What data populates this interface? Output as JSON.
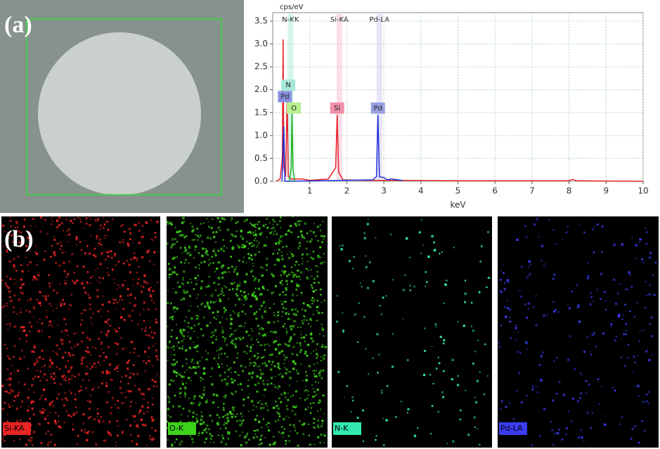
{
  "panels": {
    "a_label": "(a)",
    "b_label": "(b)",
    "maps": [
      {
        "label": "Si-KA",
        "color": "#e82424"
      },
      {
        "label": "O-K",
        "color": "#3ed21a"
      },
      {
        "label": "N-K",
        "color": "#33e8b0"
      },
      {
        "label": "Pd-LA",
        "color": "#3a3cf0"
      }
    ]
  },
  "chart_data": {
    "type": "line",
    "ylabel": "cps/eV",
    "xlabel": "keV",
    "xlim": [
      0,
      10
    ],
    "xticks": [
      1,
      2,
      3,
      4,
      5,
      6,
      7,
      8,
      9,
      10
    ],
    "ylim": [
      0,
      3.5
    ],
    "yticks": [
      {
        "value": 0,
        "label": "0.0"
      },
      {
        "value": 0.5,
        "label": "0.5"
      },
      {
        "value": 1,
        "label": "1.0"
      },
      {
        "value": 1.5,
        "label": "1.5"
      },
      {
        "value": 2,
        "label": "2.0"
      },
      {
        "value": 2.5,
        "label": "2.5"
      },
      {
        "value": 3,
        "label": "3.0"
      },
      {
        "value": 3.5,
        "label": "3.5"
      }
    ],
    "grid": true,
    "series": [
      {
        "color": "#e8202a",
        "x": [
          0.1,
          0.2,
          0.26,
          0.28,
          0.3,
          0.35,
          0.39,
          0.42,
          0.5,
          0.8,
          1.0,
          1.5,
          1.7,
          1.74,
          1.78,
          1.9,
          2.5,
          3.5,
          5,
          6,
          8,
          8.1,
          8.2,
          10
        ],
        "values": [
          0,
          0.05,
          0.5,
          3.1,
          0.3,
          0.1,
          1.9,
          0.1,
          0.05,
          0.05,
          0.02,
          0.05,
          0.3,
          1.45,
          0.2,
          0.03,
          0.02,
          0.02,
          0.01,
          0.01,
          0.01,
          0.04,
          0.01,
          0
        ]
      },
      {
        "color": "#2030d8",
        "x": [
          0.25,
          0.3,
          0.33,
          2.7,
          2.8,
          2.84,
          2.88,
          3.0,
          3.1,
          3.2,
          3.5
        ],
        "values": [
          0,
          1.2,
          0,
          0.03,
          0.1,
          1.45,
          0.1,
          0.08,
          0.03,
          0.05,
          0.02
        ]
      },
      {
        "color": "#20b020",
        "x": [
          0.45,
          0.5,
          0.52,
          0.55,
          0.6
        ],
        "values": [
          0,
          0.3,
          1.5,
          0.25,
          0
        ]
      }
    ],
    "annotations": [
      {
        "text": "N-KK",
        "x": 0.48,
        "color": "#b8f0e0"
      },
      {
        "text": "Si-KA",
        "x": 1.8,
        "color": "#f8c8d8"
      },
      {
        "text": "Pd-LA",
        "x": 2.88,
        "color": "#d8d0f0"
      }
    ],
    "markers": [
      {
        "text": "N",
        "x": 0.42,
        "y": 2.1,
        "color": "#a8e8d8"
      },
      {
        "text": "Pd",
        "x": 0.33,
        "y": 1.85,
        "color": "#8890e0"
      },
      {
        "text": "O",
        "x": 0.57,
        "y": 1.6,
        "color": "#b8f090"
      },
      {
        "text": "Si",
        "x": 1.74,
        "y": 1.6,
        "color": "#f090a8"
      },
      {
        "text": "Pd",
        "x": 2.84,
        "y": 1.6,
        "color": "#98a0e0"
      }
    ]
  }
}
